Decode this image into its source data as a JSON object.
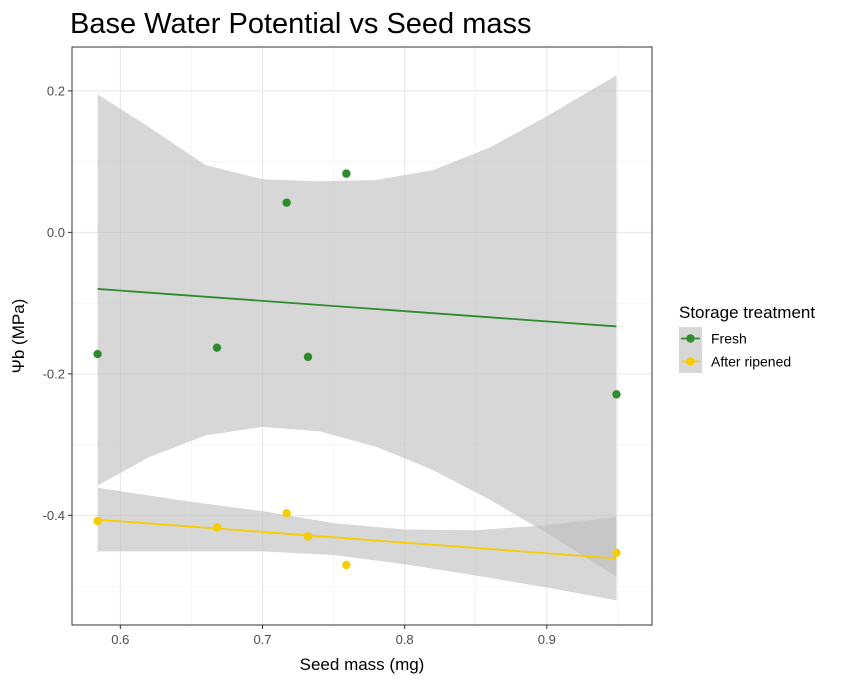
{
  "chart_data": {
    "type": "scatter",
    "title": "Base Water Potential vs Seed mass",
    "xlabel": "Seed mass (mg)",
    "ylabel": "Ψb (MPa)",
    "xlim": [
      0.566,
      0.974
    ],
    "ylim": [
      -0.555,
      0.262
    ],
    "x_ticks": [
      0.6,
      0.7,
      0.8,
      0.9
    ],
    "x_tick_labels": [
      "0.6",
      "0.7",
      "0.8",
      "0.9"
    ],
    "y_ticks": [
      -0.4,
      -0.2,
      0.0,
      0.2
    ],
    "y_tick_labels": [
      "-0.4",
      "-0.2",
      "0.0",
      "0.2"
    ],
    "grid": true,
    "legend": {
      "title": "Storage treatment",
      "placement": "right"
    },
    "series": [
      {
        "name": "Fresh",
        "color": "#2e8b2e",
        "points": [
          {
            "x": 0.584,
            "y": -0.172
          },
          {
            "x": 0.668,
            "y": -0.163
          },
          {
            "x": 0.717,
            "y": 0.042
          },
          {
            "x": 0.732,
            "y": -0.176
          },
          {
            "x": 0.759,
            "y": 0.083
          },
          {
            "x": 0.949,
            "y": -0.229
          }
        ],
        "fit_line": {
          "x": [
            0.584,
            0.949
          ],
          "y": [
            -0.08,
            -0.133
          ]
        },
        "confidence_band": {
          "x": [
            0.584,
            0.62,
            0.66,
            0.7,
            0.74,
            0.78,
            0.82,
            0.86,
            0.9,
            0.949
          ],
          "lower": [
            -0.358,
            -0.318,
            -0.287,
            -0.275,
            -0.281,
            -0.303,
            -0.336,
            -0.378,
            -0.425,
            -0.487
          ],
          "upper": [
            0.195,
            0.149,
            0.095,
            0.075,
            0.072,
            0.074,
            0.088,
            0.12,
            0.164,
            0.222
          ]
        }
      },
      {
        "name": "After ripened",
        "color": "#f5cd00",
        "points": [
          {
            "x": 0.584,
            "y": -0.408
          },
          {
            "x": 0.668,
            "y": -0.417
          },
          {
            "x": 0.717,
            "y": -0.397
          },
          {
            "x": 0.732,
            "y": -0.43
          },
          {
            "x": 0.759,
            "y": -0.47
          },
          {
            "x": 0.949,
            "y": -0.453
          }
        ],
        "fit_line": {
          "x": [
            0.584,
            0.949
          ],
          "y": [
            -0.406,
            -0.461
          ]
        },
        "confidence_band": {
          "x": [
            0.584,
            0.65,
            0.7,
            0.75,
            0.8,
            0.85,
            0.9,
            0.949
          ],
          "lower": [
            -0.451,
            -0.451,
            -0.451,
            -0.456,
            -0.469,
            -0.485,
            -0.502,
            -0.52
          ],
          "upper": [
            -0.361,
            -0.381,
            -0.394,
            -0.411,
            -0.42,
            -0.421,
            -0.414,
            -0.402
          ]
        }
      }
    ],
    "band_color": "#bdbdbd"
  }
}
